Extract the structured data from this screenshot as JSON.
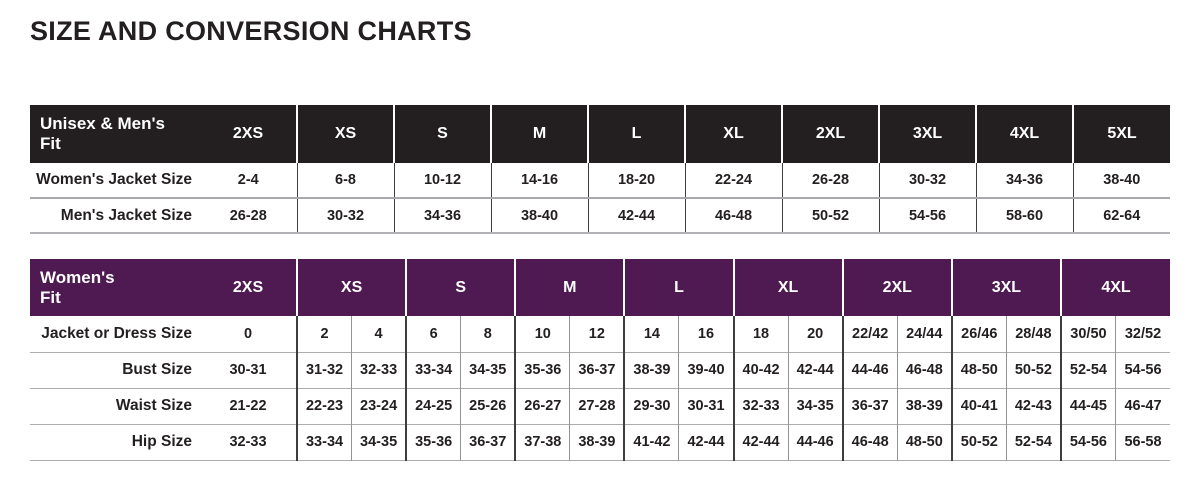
{
  "page_title": "SIZE AND CONVERSION CHARTS",
  "colors": {
    "unisex_header_bg": "#231f20",
    "womens_header_bg": "#4e1a51",
    "header_text": "#ffffff",
    "body_text": "#231f20",
    "grid_dark": "#3f3c3d",
    "grid_light": "#a7a9ac"
  },
  "unisex_mens_table": {
    "header_label": "Unisex & Men's\nFit",
    "sizes": [
      "2XS",
      "XS",
      "S",
      "M",
      "L",
      "XL",
      "2XL",
      "3XL",
      "4XL",
      "5XL"
    ],
    "rows": [
      {
        "label": "Women's Jacket Size",
        "values": [
          "2-4",
          "6-8",
          "10-12",
          "14-16",
          "18-20",
          "22-24",
          "26-28",
          "30-32",
          "34-36",
          "38-40"
        ]
      },
      {
        "label": "Men's Jacket Size",
        "values": [
          "26-28",
          "30-32",
          "34-36",
          "38-40",
          "42-44",
          "46-48",
          "50-52",
          "54-56",
          "58-60",
          "62-64"
        ]
      }
    ]
  },
  "womens_table": {
    "header_label": "Women's\nFit",
    "sizes": [
      "2XS",
      "XS",
      "S",
      "M",
      "L",
      "XL",
      "2XL",
      "3XL",
      "4XL"
    ],
    "rows": [
      {
        "label": "Jacket or Dress Size",
        "values": [
          "0",
          "2",
          "4",
          "6",
          "8",
          "10",
          "12",
          "14",
          "16",
          "18",
          "20",
          "22/42",
          "24/44",
          "26/46",
          "28/48",
          "30/50",
          "32/52"
        ]
      },
      {
        "label": "Bust Size",
        "values": [
          "30-31",
          "31-32",
          "32-33",
          "33-34",
          "34-35",
          "35-36",
          "36-37",
          "38-39",
          "39-40",
          "40-42",
          "42-44",
          "44-46",
          "46-48",
          "48-50",
          "50-52",
          "52-54",
          "54-56"
        ]
      },
      {
        "label": "Waist Size",
        "values": [
          "21-22",
          "22-23",
          "23-24",
          "24-25",
          "25-26",
          "26-27",
          "27-28",
          "29-30",
          "30-31",
          "32-33",
          "34-35",
          "36-37",
          "38-39",
          "40-41",
          "42-43",
          "44-45",
          "46-47"
        ]
      },
      {
        "label": "Hip Size",
        "values": [
          "32-33",
          "33-34",
          "34-35",
          "35-36",
          "36-37",
          "37-38",
          "38-39",
          "41-42",
          "42-44",
          "42-44",
          "44-46",
          "46-48",
          "48-50",
          "50-52",
          "52-54",
          "54-56",
          "56-58"
        ]
      }
    ]
  }
}
